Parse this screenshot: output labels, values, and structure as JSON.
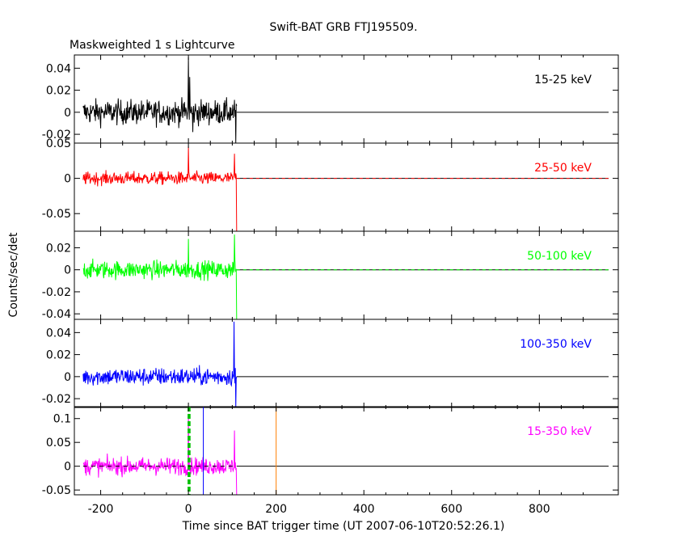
{
  "page": {
    "title": "Swift-BAT GRB FTJ195509.",
    "subtitle": "Maskweighted 1 s Lightcurve",
    "xlabel": "Time since BAT trigger time (UT 2007-06-10T20:52:26.1)",
    "ylabel": "Counts/sec/det"
  },
  "colors": {
    "axis": "#000000",
    "band_15_25": "#000000",
    "band_25_50": "#ff0000",
    "band_50_100": "#00ff00",
    "band_100_350": "#0000ff",
    "band_15_350": "#ff00ff",
    "marker_green": "#00c000",
    "marker_blue": "#0000ff",
    "marker_orange": "#ff8000"
  },
  "chart_data": [
    {
      "type": "line",
      "band": "15-25 keV",
      "xlim": [
        -260,
        980
      ],
      "ylim": [
        -0.028,
        0.052
      ],
      "xticks": [
        -200,
        0,
        200,
        400,
        600,
        800
      ],
      "yticks": [
        -0.02,
        0,
        0.02,
        0.04
      ],
      "ytick_labels": [
        "-0.02",
        "0",
        "0.02",
        "0.04"
      ],
      "data_range": [
        -240,
        110
      ],
      "noise_sigma": 0.011,
      "spikes": [
        [
          0,
          0.05
        ],
        [
          3,
          0.032
        ],
        [
          10,
          -0.018
        ],
        [
          108,
          -0.028
        ]
      ],
      "zero_line_end": 980
    },
    {
      "type": "line",
      "band": "25-50 keV",
      "xlim": [
        -260,
        980
      ],
      "ylim": [
        -0.075,
        0.05
      ],
      "xticks": [
        -200,
        0,
        200,
        400,
        600,
        800
      ],
      "yticks": [
        -0.05,
        0,
        0.05
      ],
      "ytick_labels": [
        "-0.05",
        "0",
        "0.05"
      ],
      "data_range": [
        -240,
        110
      ],
      "noise_sigma": 0.009,
      "spikes": [
        [
          0,
          0.045
        ],
        [
          105,
          0.035
        ],
        [
          110,
          -0.075
        ]
      ],
      "zero_line_end": 980
    },
    {
      "type": "line",
      "band": "50-100 keV",
      "xlim": [
        -260,
        980
      ],
      "ylim": [
        -0.045,
        0.035
      ],
      "xticks": [
        -200,
        0,
        200,
        400,
        600,
        800
      ],
      "yticks": [
        -0.04,
        -0.02,
        0,
        0.02
      ],
      "ytick_labels": [
        "-0.04",
        "-0.02",
        "0",
        "0.02"
      ],
      "data_range": [
        -240,
        110
      ],
      "noise_sigma": 0.008,
      "spikes": [
        [
          0,
          0.028
        ],
        [
          105,
          0.032
        ],
        [
          110,
          -0.045
        ]
      ],
      "zero_line_end": 980
    },
    {
      "type": "line",
      "band": "100-350 keV",
      "xlim": [
        -260,
        980
      ],
      "ylim": [
        -0.028,
        0.052
      ],
      "xticks": [
        -200,
        0,
        200,
        400,
        600,
        800
      ],
      "yticks": [
        -0.02,
        0,
        0.02,
        0.04
      ],
      "ytick_labels": [
        "-0.02",
        "0",
        "0.02",
        "0.04"
      ],
      "data_range": [
        -240,
        110
      ],
      "noise_sigma": 0.008,
      "spikes": [
        [
          104,
          0.05
        ],
        [
          108,
          -0.028
        ]
      ],
      "zero_line_end": 980
    },
    {
      "type": "line",
      "band": "15-350 keV",
      "xlim": [
        -260,
        980
      ],
      "ylim": [
        -0.06,
        0.125
      ],
      "xticks": [
        -200,
        0,
        200,
        400,
        600,
        800
      ],
      "xtick_labels": [
        "-200",
        "0",
        "200",
        "400",
        "600",
        "800"
      ],
      "yticks": [
        -0.05,
        0,
        0.05,
        0.1
      ],
      "ytick_labels": [
        "-0.05",
        "0",
        "0.05",
        "0.1"
      ],
      "data_range": [
        -240,
        110
      ],
      "noise_sigma": 0.018,
      "spikes": [
        [
          0,
          0.11
        ],
        [
          105,
          0.075
        ],
        [
          110,
          -0.06
        ]
      ],
      "zero_line_end": 980,
      "markers": [
        {
          "x": 0,
          "color": "marker_green",
          "dash": true
        },
        {
          "x": 3,
          "color": "marker_green",
          "dash": true
        },
        {
          "x": 34,
          "color": "marker_blue",
          "dash": false
        },
        {
          "x": 200,
          "color": "marker_orange",
          "dash": false
        }
      ]
    }
  ]
}
